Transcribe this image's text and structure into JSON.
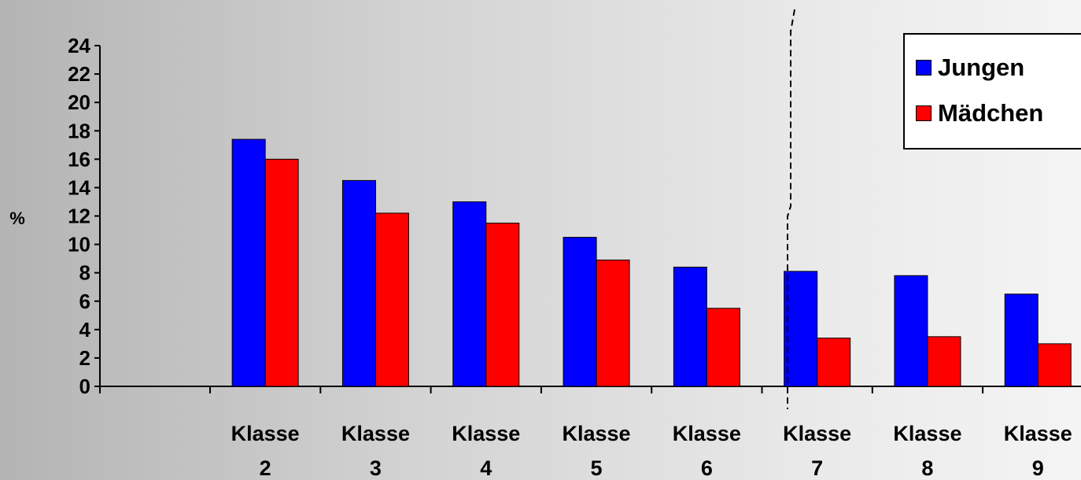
{
  "chart_data": {
    "type": "bar",
    "ylabel": "%",
    "ylim": [
      0,
      24
    ],
    "yticks": [
      "0",
      "2",
      "4",
      "6",
      "8",
      "10",
      "12",
      "14",
      "16",
      "18",
      "20",
      "22",
      "24"
    ],
    "categories": [
      {
        "line1": "Klasse",
        "line2": "2"
      },
      {
        "line1": "Klasse",
        "line2": "3"
      },
      {
        "line1": "Klasse",
        "line2": "4"
      },
      {
        "line1": "Klasse",
        "line2": "5"
      },
      {
        "line1": "Klasse",
        "line2": "6"
      },
      {
        "line1": "Klasse",
        "line2": "7"
      },
      {
        "line1": "Klasse",
        "line2": "8"
      },
      {
        "line1": "Klasse",
        "line2": "9"
      }
    ],
    "series": [
      {
        "name": "Jungen",
        "color": "#0000ff",
        "values": [
          17.4,
          14.5,
          13.0,
          10.5,
          8.4,
          8.1,
          7.8,
          6.5
        ]
      },
      {
        "name": "Mädchen",
        "color": "#ff0000",
        "values": [
          16.0,
          12.2,
          11.5,
          8.9,
          5.5,
          3.4,
          3.5,
          3.0
        ]
      }
    ],
    "legend_position": "top-right",
    "divider": "dashed vertical line between Klasse 6 and Klasse 7",
    "grid": false
  }
}
